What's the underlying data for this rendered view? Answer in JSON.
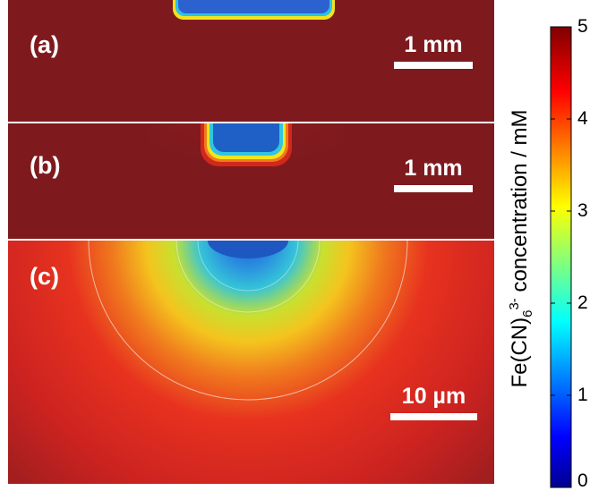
{
  "panels": [
    {
      "label": "(a)",
      "scale_label": "1 mm"
    },
    {
      "label": "(b)",
      "scale_label": "1 mm"
    },
    {
      "label": "(c)",
      "scale_label": "10 µm"
    }
  ],
  "colorbar": {
    "title_main": "Fe(CN)",
    "title_sub": "6",
    "title_sup": "3-",
    "title_rest": " concentration / mM",
    "ticks": [
      "0",
      "1",
      "2",
      "3",
      "4",
      "5"
    ],
    "range": [
      0,
      5
    ],
    "colormap": "jet"
  },
  "colors": {
    "background_field": "#7e1a1e",
    "depleted_core": "#1f5fc6"
  }
}
